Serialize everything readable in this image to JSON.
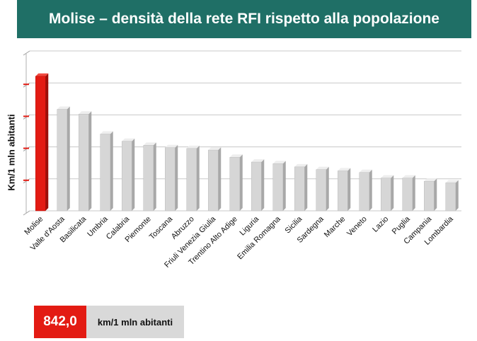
{
  "header": {
    "title": "Molise – densità della rete RFI rispetto alla popolazione"
  },
  "callout": {
    "value": "842,0",
    "unit": "km/1 mln abitanti"
  },
  "colors": {
    "header_bg": "#1f6f66",
    "highlight": "#e31b13",
    "bar": "#d6d6d6",
    "callout_value_bg": "#e31b13",
    "callout_unit_bg": "#d9d9d9"
  },
  "chart_data": {
    "type": "bar",
    "ylabel": "Km/1 mln abitanti",
    "xlabel": "",
    "grid": true,
    "ylim": [
      0,
      1000
    ],
    "categories": [
      "Molise",
      "Valle d'Aosta",
      "Basilicata",
      "Umbria",
      "Calabria",
      "Piemonte",
      "Toscana",
      "Abruzzo",
      "Friuli Venezia Giulia",
      "Trentino Alto Adige",
      "Liguria",
      "Emilia Romagna",
      "Sicilia",
      "Sardegna",
      "Marche",
      "Veneto",
      "Lazio",
      "Puglia",
      "Campania",
      "Lombardia"
    ],
    "values": [
      842,
      635,
      605,
      480,
      435,
      410,
      395,
      390,
      380,
      335,
      305,
      295,
      275,
      258,
      250,
      240,
      205,
      205,
      185,
      175
    ],
    "highlight_index": 0
  }
}
